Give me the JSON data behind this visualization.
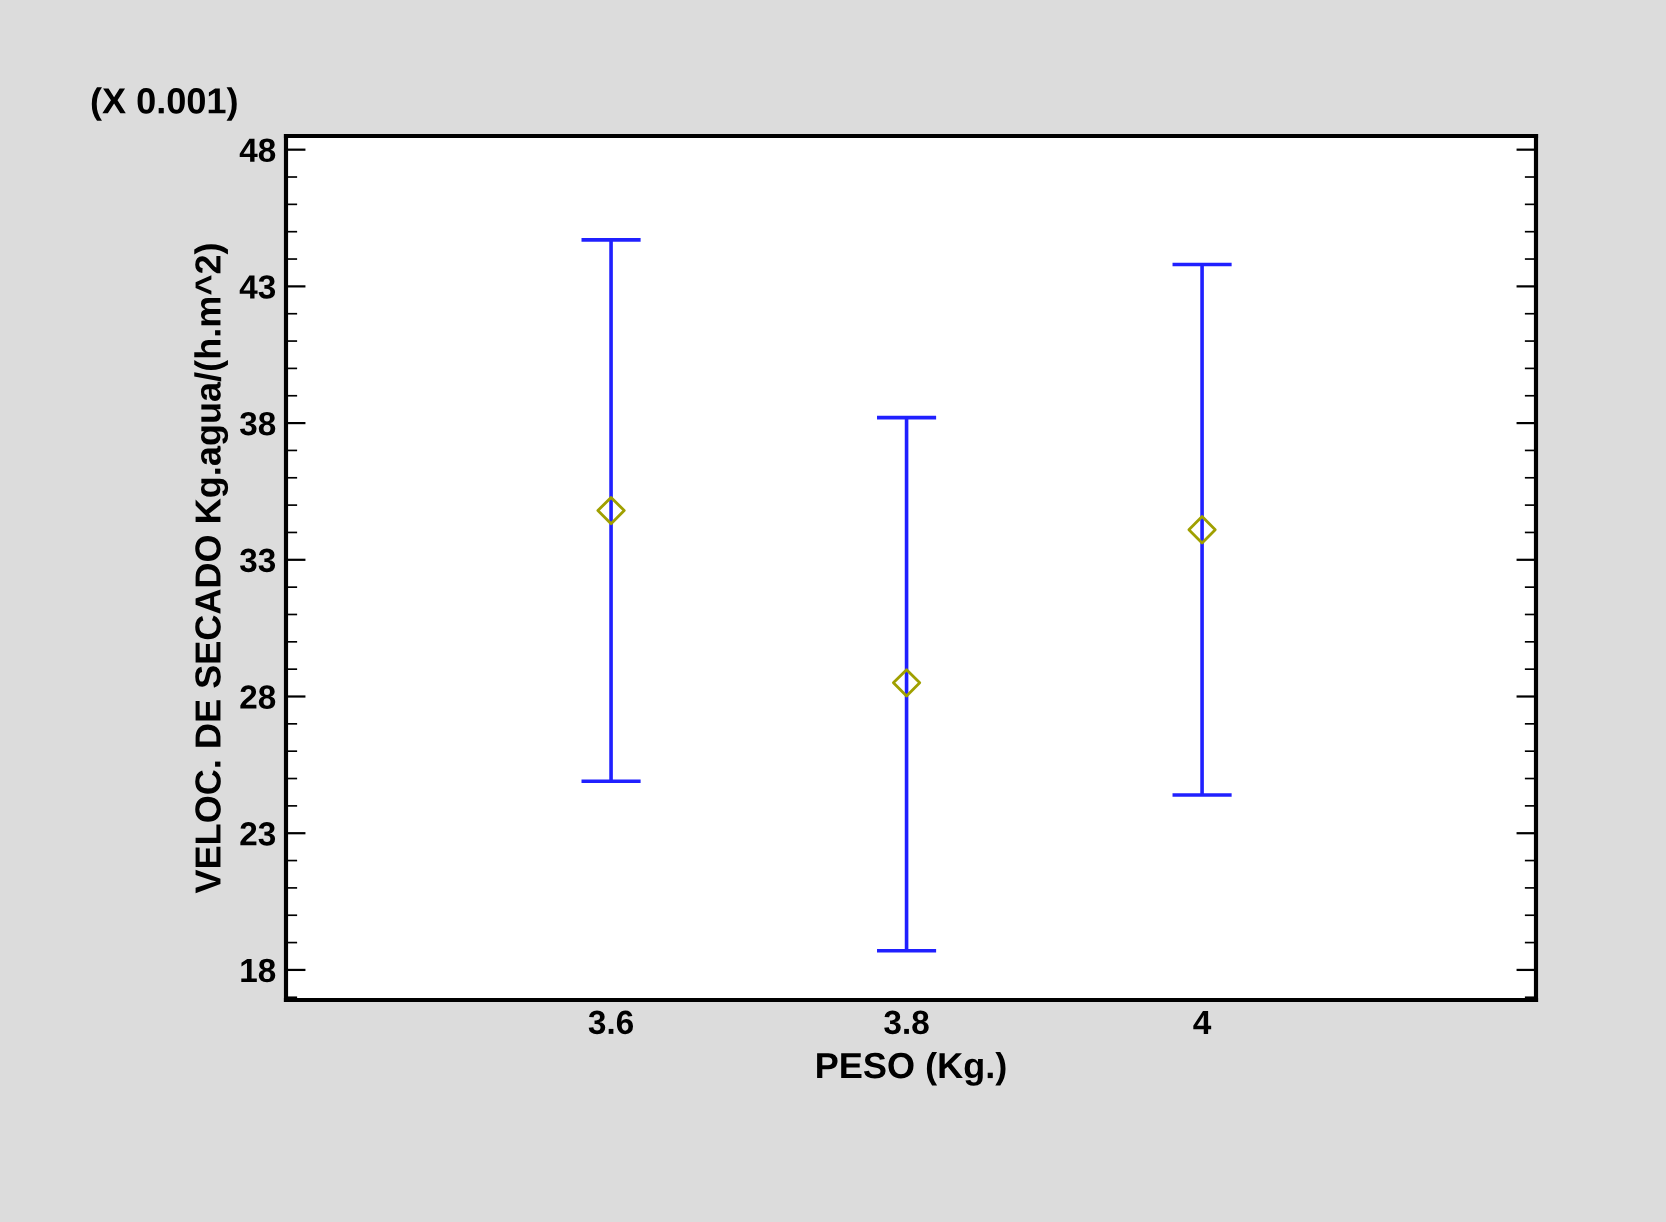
{
  "chart_data": {
    "type": "scatter",
    "xlabel": "PESO (Kg.)",
    "ylabel": "VELOC. DE SECADO Kg.agua/(h.m^2)",
    "annotations": [
      "(X 0.001)"
    ],
    "categories": [
      "3.6",
      "3.8",
      "4"
    ],
    "series": [
      {
        "color": "#a0a000",
        "values": [
          34.8,
          28.5,
          34.1
        ],
        "errors": [
          [
            24.9,
            44.7
          ],
          [
            18.7,
            38.2
          ],
          [
            24.4,
            43.8
          ]
        ]
      }
    ],
    "marker": "diamond",
    "ylim": [
      16.9,
      48.5
    ],
    "yticks": [
      18,
      23,
      28,
      33,
      38,
      43,
      48
    ],
    "grid": false,
    "legend": false
  }
}
